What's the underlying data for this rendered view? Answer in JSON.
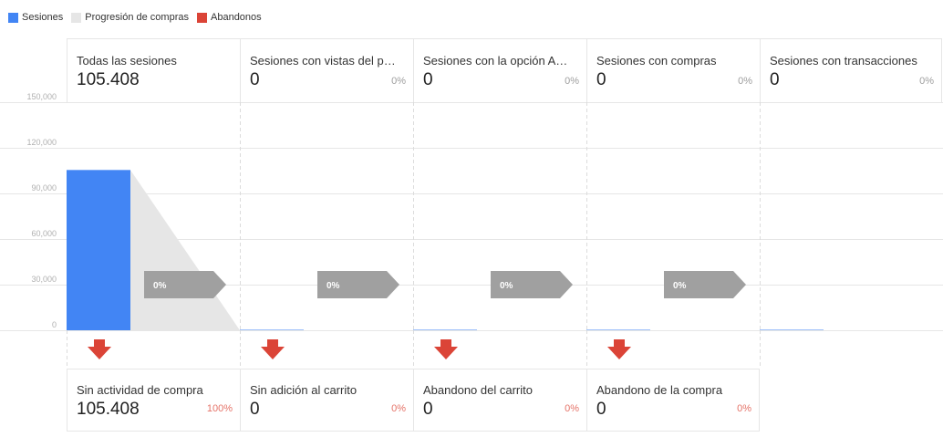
{
  "legend": [
    {
      "label": "Sesiones",
      "color": "#4285f4"
    },
    {
      "label": "Progresión de compras",
      "color": "#e6e6e6"
    },
    {
      "label": "Abandonos",
      "color": "#db4437"
    }
  ],
  "stages": [
    {
      "title": "Todas las sesiones",
      "value": "105.408",
      "pct": ""
    },
    {
      "title": "Sesiones con vistas del pro…",
      "value": "0",
      "pct": "0%"
    },
    {
      "title": "Sesiones con la opción Aña…",
      "value": "0",
      "pct": "0%"
    },
    {
      "title": "Sesiones con compras",
      "value": "0",
      "pct": "0%"
    },
    {
      "title": "Sesiones con transacciones",
      "value": "0",
      "pct": "0%"
    }
  ],
  "conversion_arrows": [
    "0%",
    "0%",
    "0%",
    "0%"
  ],
  "abandonment": [
    {
      "title": "Sin actividad de compra",
      "value": "105.408",
      "pct": "100%"
    },
    {
      "title": "Sin adición al carrito",
      "value": "0",
      "pct": "0%"
    },
    {
      "title": "Abandono del carrito",
      "value": "0",
      "pct": "0%"
    },
    {
      "title": "Abandono de la compra",
      "value": "0",
      "pct": "0%"
    }
  ],
  "chart_data": {
    "type": "bar",
    "categories": [
      "Todas las sesiones",
      "Sesiones con vistas del pro…",
      "Sesiones con la opción Aña…",
      "Sesiones con compras",
      "Sesiones con transacciones"
    ],
    "series": [
      {
        "name": "Sesiones",
        "values": [
          105408,
          0,
          0,
          0,
          0
        ]
      }
    ],
    "ylim": [
      0,
      150000
    ],
    "yticks": [
      0,
      30000,
      60000,
      90000,
      120000,
      150000
    ],
    "ytick_labels": [
      "0",
      "30,000",
      "60,000",
      "90,000",
      "120,000",
      "150,000"
    ],
    "grid": true,
    "legend_position": "top-left"
  }
}
